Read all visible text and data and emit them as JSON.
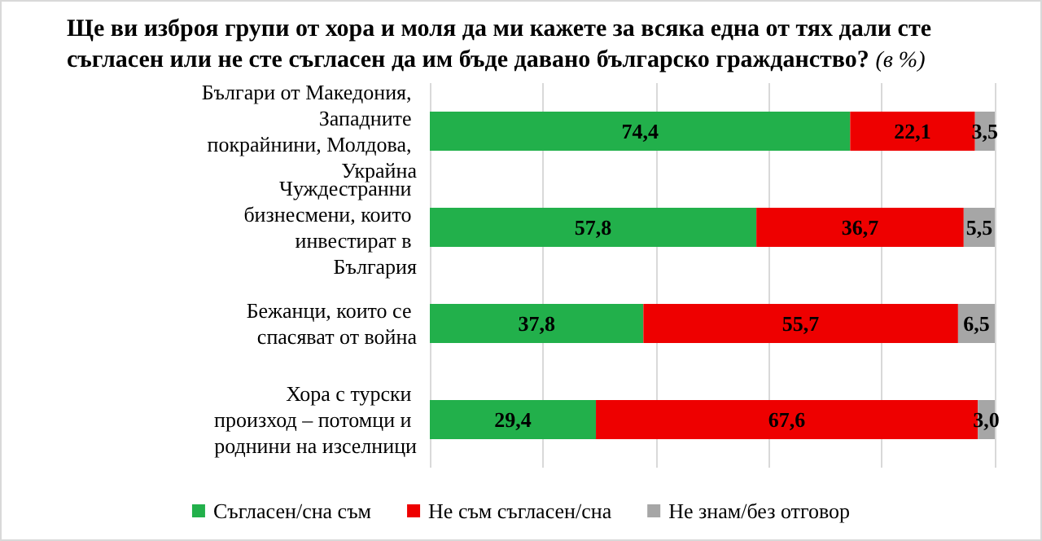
{
  "chart_data": {
    "type": "bar",
    "orientation": "horizontal",
    "stacked": true,
    "title": "Ще ви изброя групи от хора и моля да ми кажете за всяка една от тях дали сте съгласен или не сте съгласен да им бъде давано българско гражданство?",
    "subtitle": "(в %)",
    "categories": [
      "Българи от Македония, Западните покрайнини, Молдова, Украйна",
      "Чуждестранни бизнесмени, които инвестират в България",
      "Бежанци, които се спасяват от война",
      "Хора с турски произход – потомци и роднини на изселници"
    ],
    "series": [
      {
        "name": "Съгласен/сна съм",
        "color": "#22b04b",
        "values": [
          74.4,
          57.8,
          37.8,
          29.4
        ],
        "value_labels": [
          "74,4",
          "57,8",
          "37,8",
          "29,4"
        ]
      },
      {
        "name": "Не съм съгласен/сна",
        "color": "#ee0000",
        "values": [
          22.1,
          36.7,
          55.7,
          67.6
        ],
        "value_labels": [
          "22,1",
          "36,7",
          "55,7",
          "67,6"
        ]
      },
      {
        "name": "Не знам/без отговор",
        "color": "#a6a6a6",
        "values": [
          3.5,
          5.5,
          6.5,
          3.0
        ],
        "value_labels": [
          "3,5",
          "5,5",
          "6,5",
          "3,0"
        ]
      }
    ],
    "xlim": [
      0,
      100
    ],
    "xticks": [
      {
        "value": 0,
        "label": null
      },
      {
        "value": 20,
        "label": null
      },
      {
        "value": 40,
        "label": null
      },
      {
        "value": 60,
        "label": null
      },
      {
        "value": 80,
        "label": null
      },
      {
        "value": 100,
        "label": null
      }
    ],
    "tick_labels": "y",
    "grid": "x",
    "legend": "bottom"
  }
}
